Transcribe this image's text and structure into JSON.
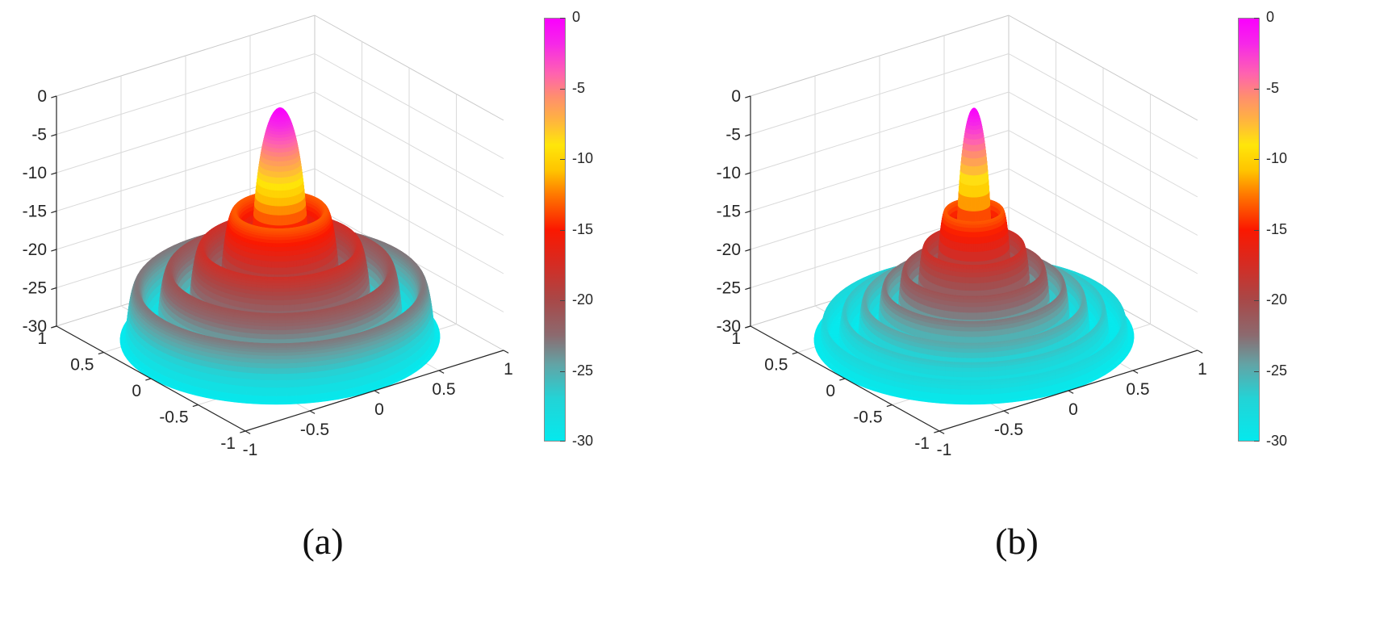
{
  "figure": {
    "background": "#ffffff",
    "panels": [
      {
        "caption": "(a)"
      },
      {
        "caption": "(b)"
      }
    ]
  },
  "style": {
    "axis_color": "#262626",
    "grid_color": "#dadada",
    "box_edge_color": "#c9c9c9",
    "label_color": "#262626"
  },
  "colormap_stops": [
    {
      "t": 0.0,
      "color": "#fa00fe"
    },
    {
      "t": 0.06,
      "color": "#f628e8"
    },
    {
      "t": 0.13,
      "color": "#ff62b0"
    },
    {
      "t": 0.185,
      "color": "#ff8e6e"
    },
    {
      "t": 0.24,
      "color": "#ffb340"
    },
    {
      "t": 0.3,
      "color": "#ffe60a"
    },
    {
      "t": 0.36,
      "color": "#ffc400"
    },
    {
      "t": 0.42,
      "color": "#ff7500"
    },
    {
      "t": 0.5,
      "color": "#fb1800"
    },
    {
      "t": 0.58,
      "color": "#d62b22"
    },
    {
      "t": 0.667,
      "color": "#a84848"
    },
    {
      "t": 0.75,
      "color": "#8c6a6f"
    },
    {
      "t": 0.82,
      "color": "#62a4a6"
    },
    {
      "t": 0.9,
      "color": "#23d3d6"
    },
    {
      "t": 1.0,
      "color": "#05e9ed"
    }
  ],
  "chart_data": [
    {
      "type": "surface",
      "panel_label": "(a)",
      "title": "",
      "xlabel": "",
      "ylabel": "",
      "zlabel": "",
      "xlim": [
        -1,
        1
      ],
      "ylim": [
        -1,
        1
      ],
      "zlim": [
        -30,
        0
      ],
      "x_ticks": [
        "-1",
        "-0.5",
        "0",
        "0.5",
        "1"
      ],
      "y_ticks": [
        "1",
        "0.5",
        "0",
        "-0.5",
        "-1"
      ],
      "z_ticks": [
        "0",
        "-5",
        "-10",
        "-15",
        "-20",
        "-25",
        "-30"
      ],
      "grid": true,
      "view": {
        "azimuth": -37.5,
        "elevation": 30
      },
      "surface_model": {
        "description": "Radially symmetric beam pattern (dB) over the unit disk: narrow main lobe peaking at 0 dB at the origin, 4 concentric sidelobe rings of decreasing height (about -13 to -23 dB), clipped at a -30 dB floor; outer rim drops to the floor at radius 1.",
        "function_db": "z(r) = max(-30, 20*log10(|sin(pi*k*r)/(pi*k*r)|))",
        "k": 5,
        "sidelobe_rings": 4
      },
      "colorbar": {
        "min": -30,
        "max": 0,
        "ticks": [
          "0",
          "-5",
          "-10",
          "-15",
          "-20",
          "-25",
          "-30"
        ]
      }
    },
    {
      "type": "surface",
      "panel_label": "(b)",
      "title": "",
      "xlabel": "",
      "ylabel": "",
      "zlabel": "",
      "xlim": [
        -1,
        1
      ],
      "ylim": [
        -1,
        1
      ],
      "zlim": [
        -30,
        0
      ],
      "x_ticks": [
        "-1",
        "-0.5",
        "0",
        "0.5",
        "1"
      ],
      "y_ticks": [
        "1",
        "0.5",
        "0",
        "-0.5",
        "-1"
      ],
      "z_ticks": [
        "0",
        "-5",
        "-10",
        "-15",
        "-20",
        "-25",
        "-30"
      ],
      "grid": true,
      "view": {
        "azimuth": -37.5,
        "elevation": 30
      },
      "surface_model": {
        "description": "Same radially symmetric beam pattern (dB) with a thinner main lobe and 7 concentric sidelobe rings, clipped at a -30 dB floor; outer rim drops to the floor at radius 1.",
        "function_db": "z(r) = max(-30, 20*log10(|sin(pi*k*r)/(pi*k*r)|))",
        "k": 8,
        "sidelobe_rings": 7
      },
      "colorbar": {
        "min": -30,
        "max": 0,
        "ticks": [
          "0",
          "-5",
          "-10",
          "-15",
          "-20",
          "-25",
          "-30"
        ]
      }
    }
  ]
}
